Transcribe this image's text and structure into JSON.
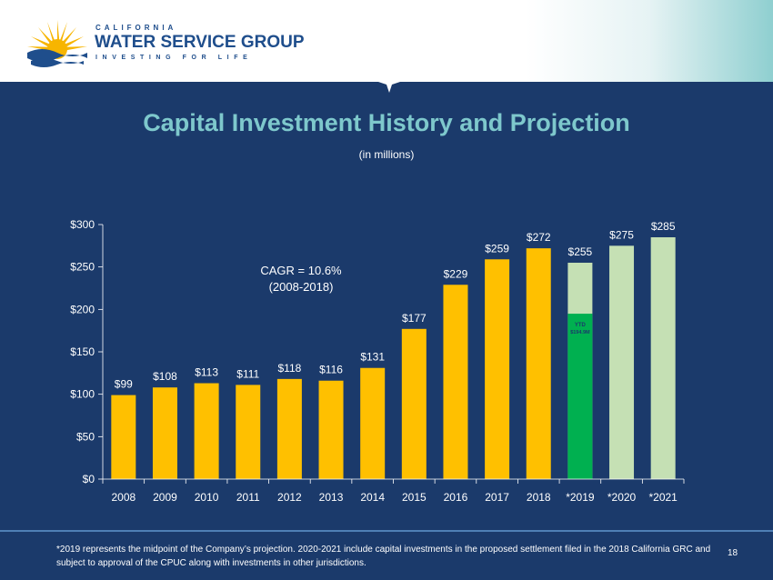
{
  "logo": {
    "line1": "CALIFORNIA",
    "line2": "WATER SERVICE GROUP",
    "line3": "INVESTING FOR LIFE"
  },
  "slide": {
    "title": "Capital Investment History and Projection",
    "subtitle": "(in millions)",
    "footnote": "*2019 represents the midpoint of the Company’s projection. 2020-2021 include capital investments in the proposed settlement filed in the 2018 California GRC and subject to approval of the CPUC along with investments in other jurisdictions.",
    "page_number": "18"
  },
  "colors": {
    "background": "#1b3a6b",
    "bar_actual": "#ffc000",
    "bar_projected": "#c5e0b4",
    "bar_ytd": "#00b050",
    "title": "#7ec8cc"
  },
  "chart_data": {
    "type": "bar",
    "categories": [
      "2008",
      "2009",
      "2010",
      "2011",
      "2012",
      "2013",
      "2014",
      "2015",
      "2016",
      "2017",
      "2018",
      "*2019",
      "*2020",
      "*2021"
    ],
    "values": [
      99,
      108,
      113,
      111,
      118,
      116,
      131,
      177,
      229,
      259,
      272,
      255,
      275,
      285
    ],
    "data_labels": [
      "$99",
      "$108",
      "$113",
      "$111",
      "$118",
      "$116",
      "$131",
      "$177",
      "$229",
      "$259",
      "$272",
      "$255",
      "$275",
      "$285"
    ],
    "projected": [
      false,
      false,
      false,
      false,
      false,
      false,
      false,
      false,
      false,
      false,
      false,
      true,
      true,
      true
    ],
    "ytd": {
      "category": "*2019",
      "value": 194.9,
      "label_line1": "YTD",
      "label_line2": "$194.9M"
    },
    "ylim": [
      0,
      300
    ],
    "yticks": [
      0,
      50,
      100,
      150,
      200,
      250,
      300
    ],
    "ytick_labels": [
      "$0",
      "$50",
      "$100",
      "$150",
      "$200",
      "$250",
      "$300"
    ],
    "annotation": {
      "line1": "CAGR = 10.6%",
      "line2": "(2008-2018)"
    },
    "grid": false,
    "legend": "none"
  }
}
